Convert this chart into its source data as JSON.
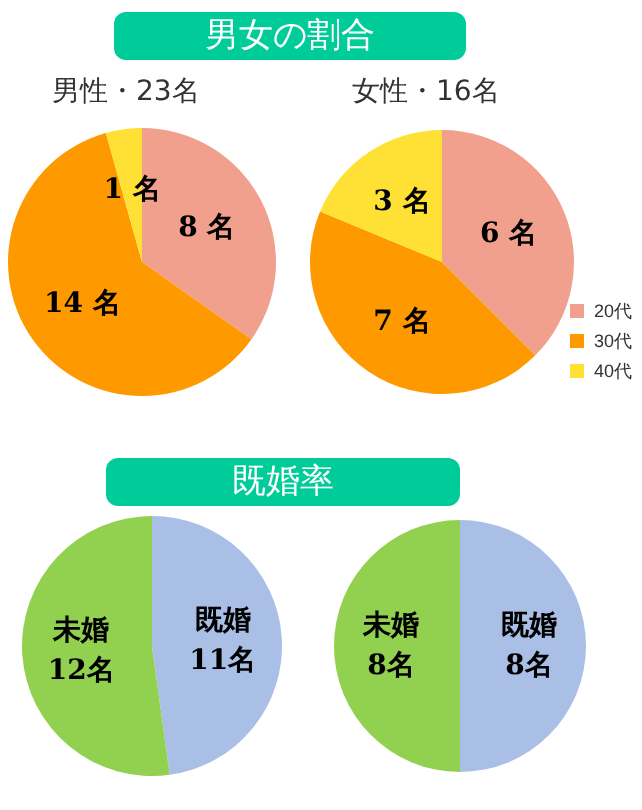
{
  "chart_data": [
    {
      "type": "pie",
      "title": "男女の割合",
      "subtitle": "男性・23名",
      "categories": [
        null,
        null,
        null
      ],
      "values": [
        8,
        14,
        1
      ],
      "colors": [
        "#f2a08e",
        "#ff9900",
        "#ffe135"
      ],
      "value_labels": [
        "8 名",
        "14 名",
        "1 名"
      ],
      "legend": false
    },
    {
      "type": "pie",
      "subtitle": "女性・16名",
      "categories": [
        "20代",
        "30代",
        "40代"
      ],
      "values": [
        6,
        7,
        3
      ],
      "colors": [
        "#f2a08e",
        "#ff9900",
        "#ffe135"
      ],
      "value_labels": [
        "6 名",
        "7 名",
        "3 名"
      ],
      "legend": "right"
    },
    {
      "type": "pie",
      "title": "既婚率",
      "categories": [
        "既婚",
        "未婚"
      ],
      "values": [
        11,
        12
      ],
      "colors": [
        "#aabfe6",
        "#92d050"
      ],
      "value_labels": [
        "11名",
        "12名"
      ],
      "legend": false
    },
    {
      "type": "pie",
      "categories": [
        "既婚",
        "未婚"
      ],
      "values": [
        8,
        8
      ],
      "colors": [
        "#aabfe6",
        "#92d050"
      ],
      "value_labels": [
        "8名",
        "8名"
      ],
      "legend": false
    }
  ]
}
